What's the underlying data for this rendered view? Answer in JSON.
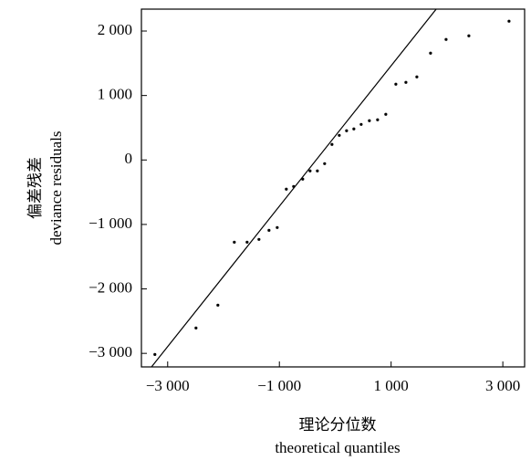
{
  "chart_data": {
    "type": "scatter",
    "x_label": [
      "理论分位数",
      "theoretical quantiles"
    ],
    "y_label": [
      "偏差残差",
      "deviance residuals"
    ],
    "series": [
      {
        "color": "#000000",
        "x": [
          -3229,
          -2493,
          -2101,
          -1807,
          -1578,
          -1366,
          -1186,
          -1039,
          -876,
          -745,
          -582,
          -451,
          -320,
          -190,
          -59,
          72,
          203,
          333,
          464,
          611,
          758,
          905,
          1085,
          1265,
          1461,
          1706,
          1984,
          2392,
          3111
        ],
        "values": [
          -3017,
          -2606,
          -2252,
          -1275,
          -1275,
          -1232,
          -1091,
          -1048,
          -453,
          -411,
          -297,
          -170,
          -170,
          -57,
          241,
          382,
          453,
          482,
          552,
          609,
          623,
          708,
          1176,
          1204,
          1289,
          1657,
          1870,
          1926,
          2153
        ]
      }
    ],
    "reference_line": {
      "color": "#000000",
      "x": [
        -3294,
        1804
      ],
      "y": [
        -3215,
        2337
      ]
    },
    "xlim": [
      -3470,
      3390
    ],
    "ylim": [
      -3210,
      2340
    ],
    "xticks": [
      {
        "value": -3000,
        "label": "−3 000"
      },
      {
        "value": -1000,
        "label": "−1 000"
      },
      {
        "value": 1000,
        "label": "1 000"
      },
      {
        "value": 3000,
        "label": "3 000"
      }
    ],
    "yticks": [
      {
        "value": -3000,
        "label": "−3 000"
      },
      {
        "value": -2000,
        "label": "−2 000"
      },
      {
        "value": -1000,
        "label": "−1 000"
      },
      0,
      {
        "value": 1000,
        "label": "1 000"
      },
      {
        "value": 2000,
        "label": "2 000"
      }
    ]
  }
}
